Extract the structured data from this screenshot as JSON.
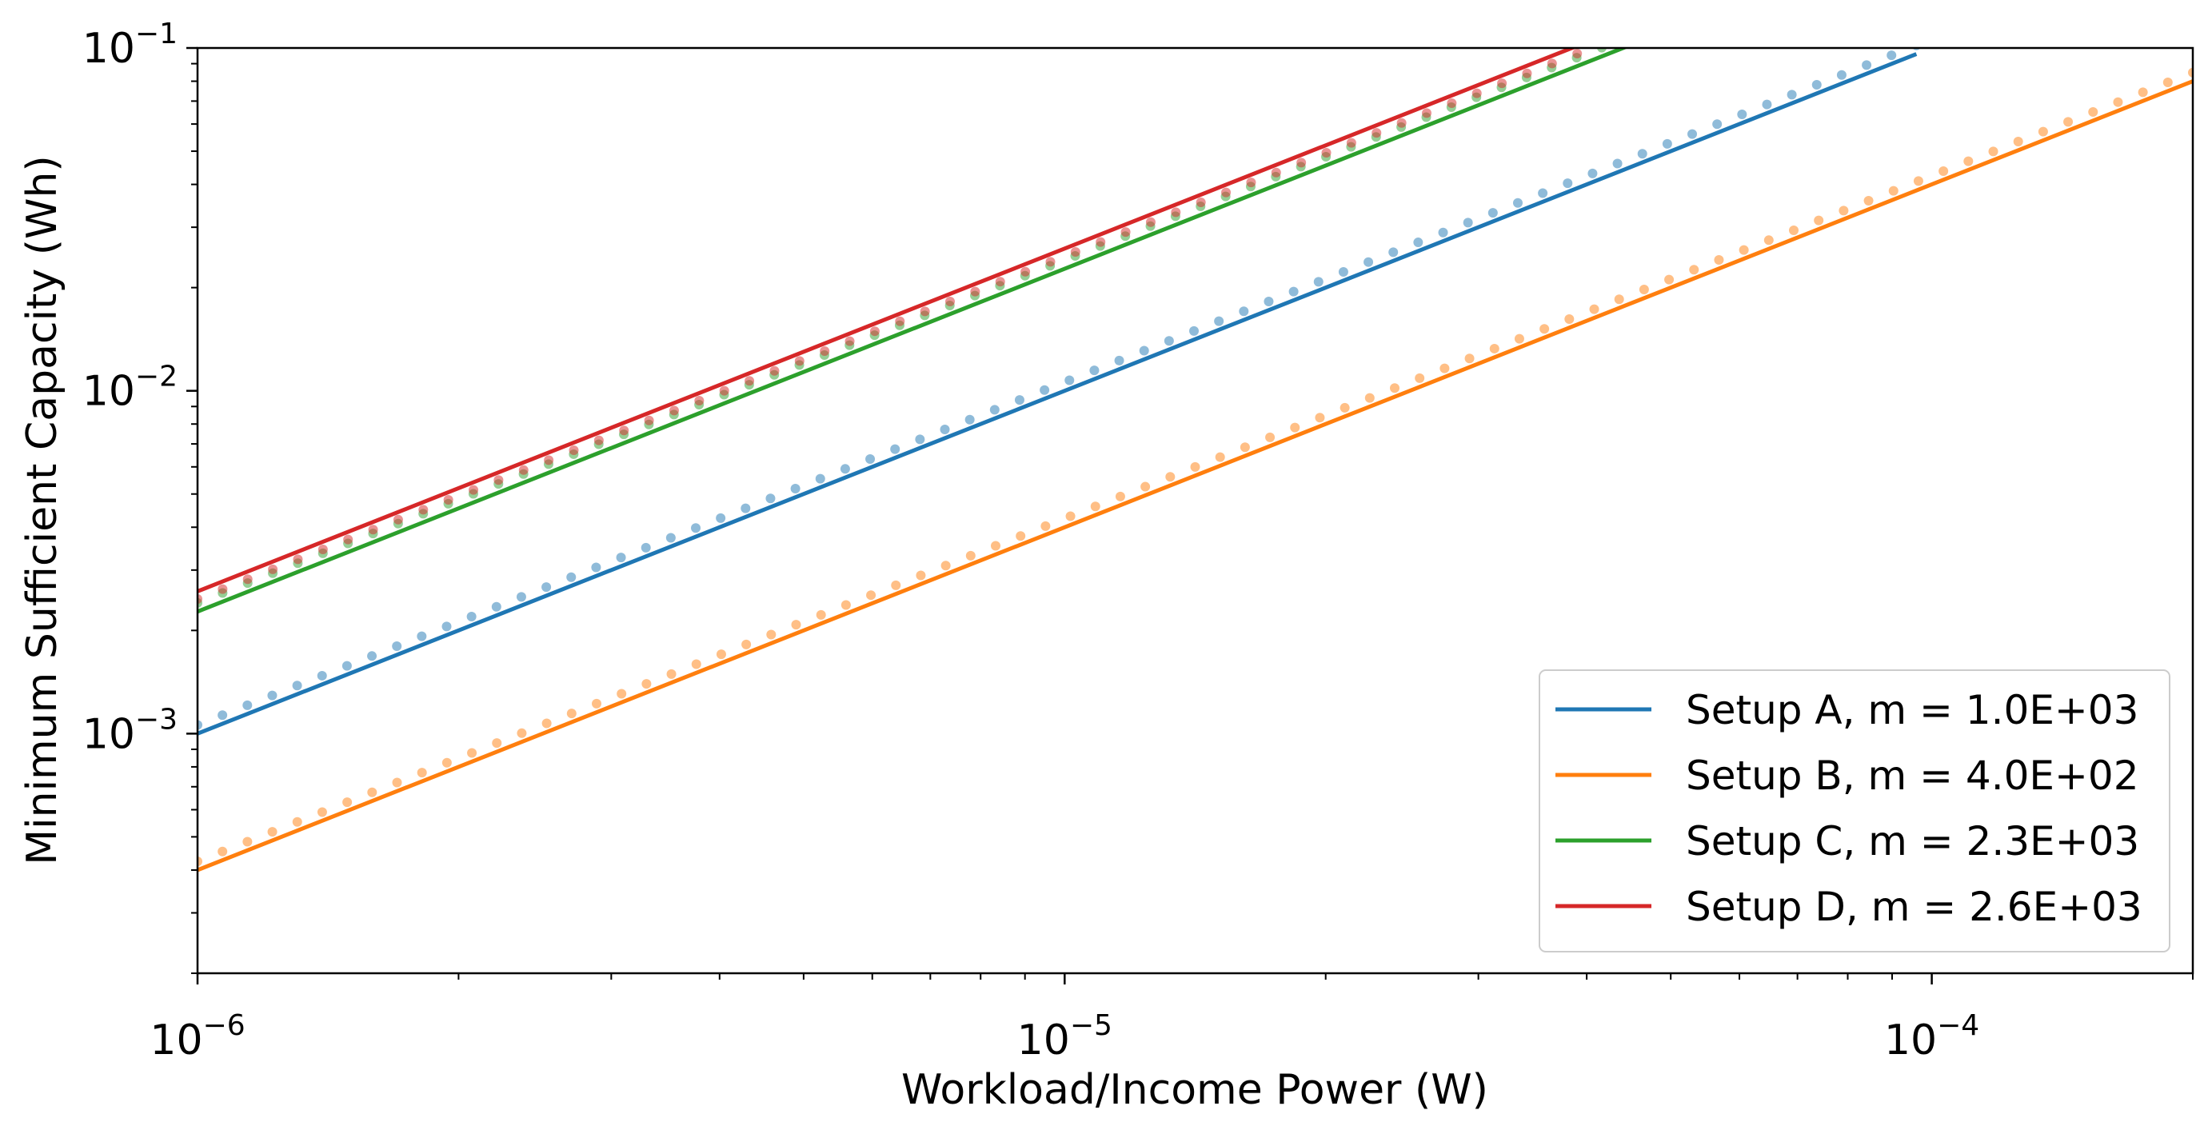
{
  "chart_data": {
    "type": "line",
    "xlabel": "Workload/Income Power (W)",
    "ylabel": "Minimum Sufficient Capacity (Wh)",
    "xscale": "log",
    "yscale": "log",
    "xlim": [
      1e-06,
      0.0002
    ],
    "ylim": [
      0.0002,
      0.1
    ],
    "x_ticks": [
      {
        "value": 1e-06,
        "mantissa": "10",
        "exponent": "−6"
      },
      {
        "value": 1e-05,
        "mantissa": "10",
        "exponent": "−5"
      },
      {
        "value": 0.0001,
        "mantissa": "10",
        "exponent": "−4"
      }
    ],
    "y_ticks": [
      {
        "value": 0.001,
        "mantissa": "10",
        "exponent": "−3"
      },
      {
        "value": 0.01,
        "mantissa": "10",
        "exponent": "−2"
      },
      {
        "value": 0.1,
        "mantissa": "10",
        "exponent": "−1"
      }
    ],
    "grid": false,
    "legend_position": "bottom-right",
    "series": [
      {
        "name": "Setup A, m = 1.0E+03",
        "color": "#1f77b4",
        "fit_slope": 1000,
        "x_range": [
          1e-06,
          9.6e-05
        ],
        "points_y_ratio": 1.06
      },
      {
        "name": "Setup B, m = 4.0E+02",
        "color": "#ff7f0e",
        "fit_slope": 400,
        "x_range": [
          1e-06,
          0.0002
        ],
        "points_y_ratio": 1.06
      },
      {
        "name": "Setup C, m = 2.3E+03",
        "color": "#2ca02c",
        "fit_slope": 2270,
        "x_range": [
          1e-06,
          4.45e-05
        ],
        "points_y_ratio": 1.06
      },
      {
        "name": "Setup D, m = 2.6E+03",
        "color": "#d62728",
        "fit_slope": 2600,
        "x_range": [
          1e-06,
          3.9e-05
        ],
        "points_y_ratio": 0.95
      }
    ],
    "scatter_note_visible": false
  }
}
